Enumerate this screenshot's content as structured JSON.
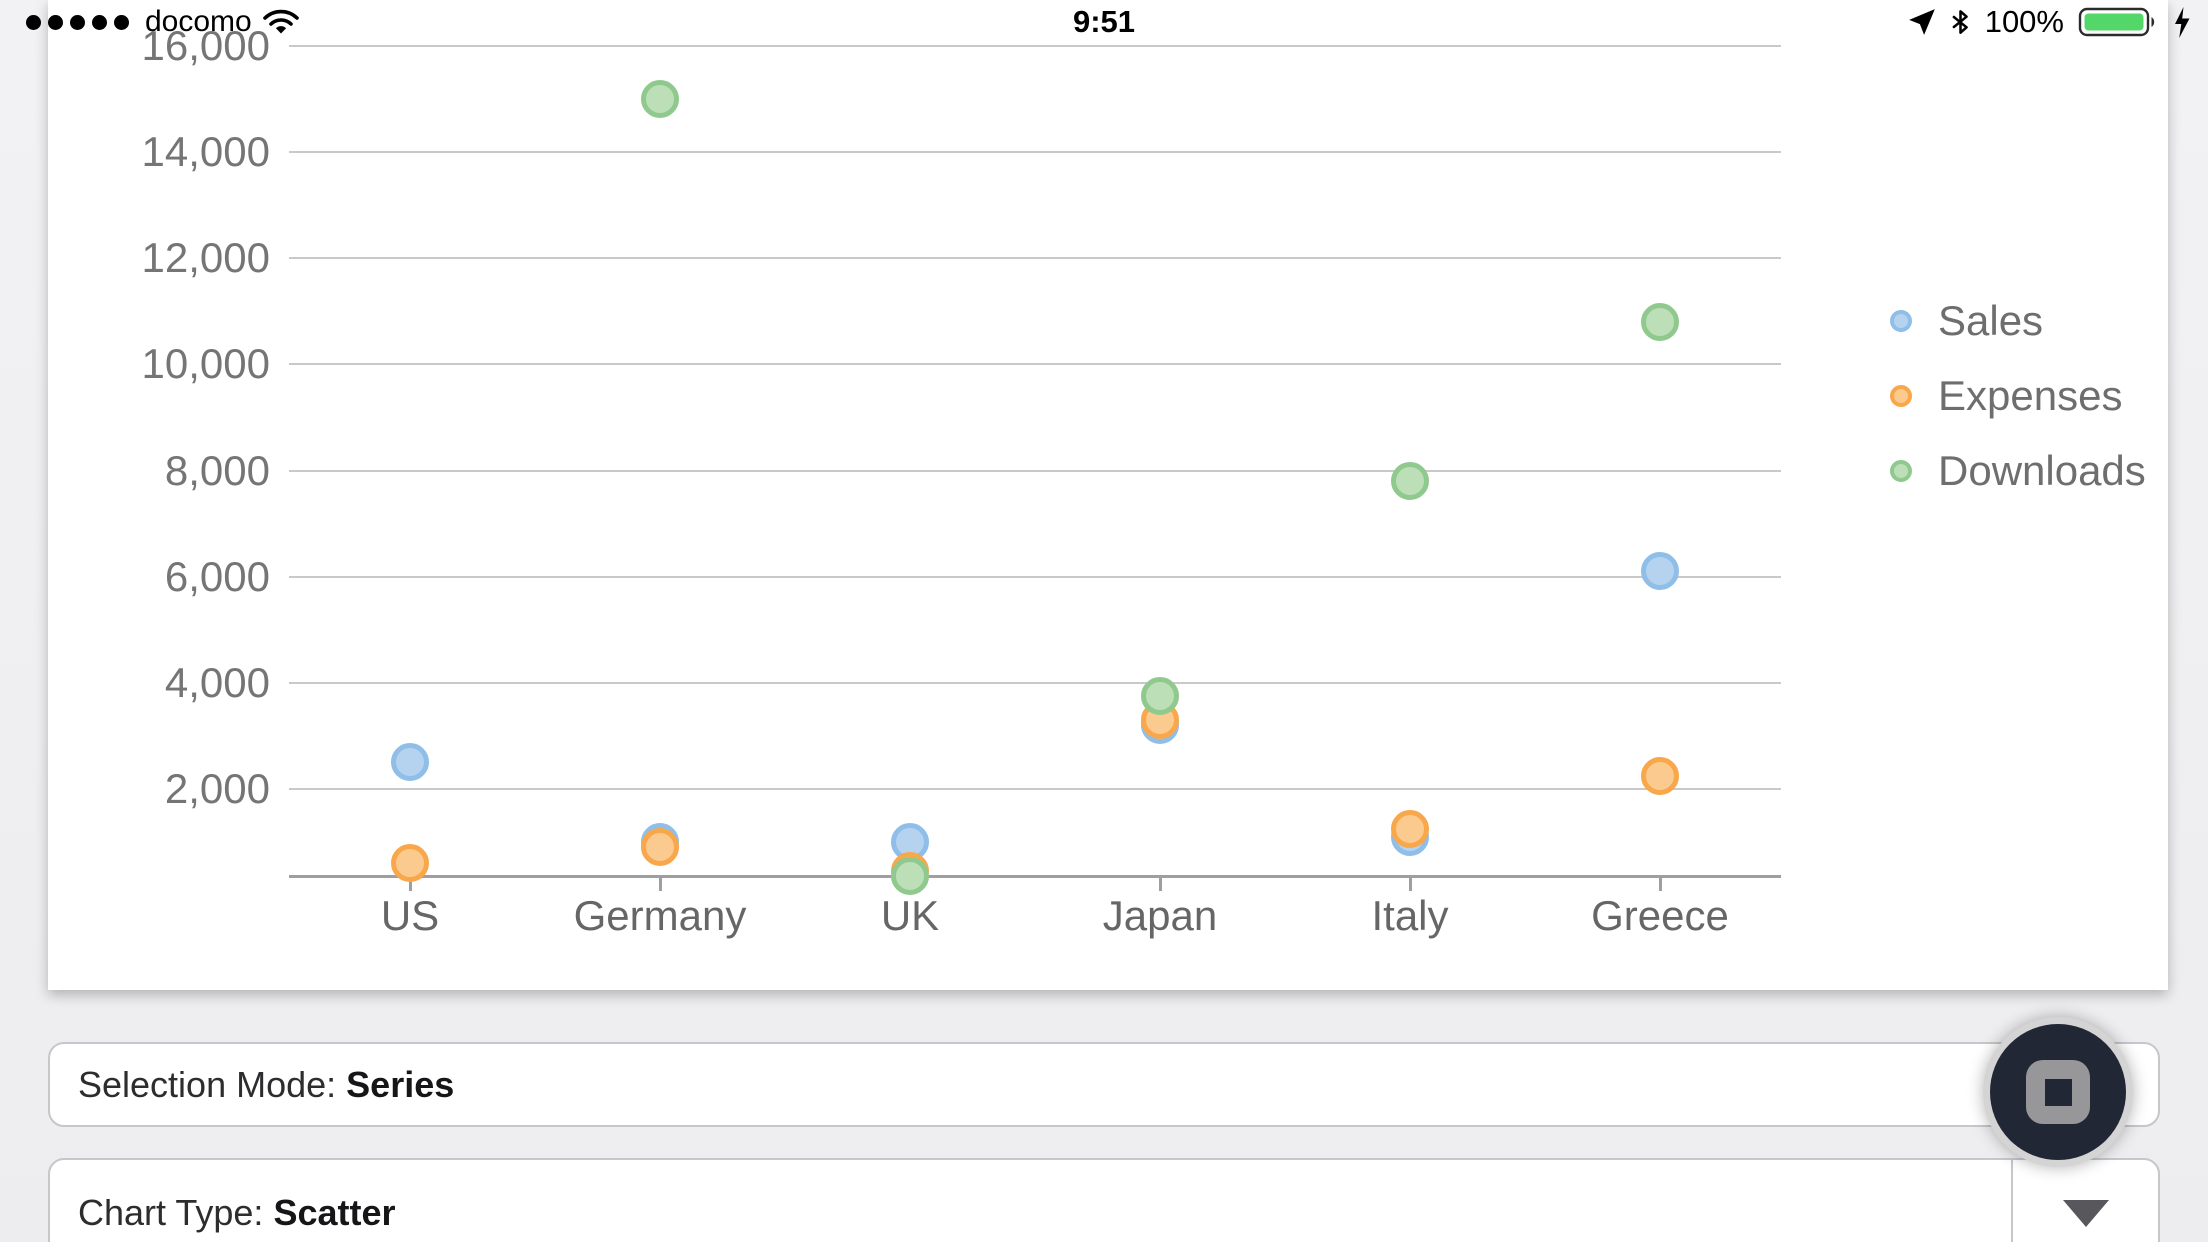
{
  "status_bar": {
    "carrier": "docomo",
    "signal_dots": 5,
    "time": "9:51",
    "battery_percent": "100%",
    "battery_color": "#53d769",
    "icons": [
      "signal-strength-icon",
      "wifi-icon",
      "location-arrow-icon",
      "bluetooth-icon",
      "battery-icon",
      "charging-bolt-icon"
    ]
  },
  "chart_data": {
    "type": "scatter",
    "title": "",
    "xlabel": "",
    "ylabel": "",
    "categories": [
      "US",
      "Germany",
      "UK",
      "Japan",
      "Italy",
      "Greece"
    ],
    "series": [
      {
        "name": "Sales",
        "ring_color": "#8FBEE8",
        "fill_color": "#B5D3EF",
        "values": [
          2500,
          1000,
          1000,
          3200,
          1100,
          6100
        ]
      },
      {
        "name": "Expenses",
        "ring_color": "#F8A74B",
        "fill_color": "#FBCA8E",
        "values": [
          600,
          900,
          450,
          3300,
          1250,
          2250
        ]
      },
      {
        "name": "Downloads",
        "ring_color": "#90C98E",
        "fill_color": "#BCDFB7",
        "values": [
          null,
          15000,
          360,
          3750,
          7800,
          10800
        ]
      }
    ],
    "y_ticks": [
      {
        "value": 16000,
        "label": "16,000"
      },
      {
        "value": 14000,
        "label": "14,000"
      },
      {
        "value": 12000,
        "label": "12,000"
      },
      {
        "value": 10000,
        "label": "10,000"
      },
      {
        "value": 8000,
        "label": "8,000"
      },
      {
        "value": 6000,
        "label": "6,000"
      },
      {
        "value": 4000,
        "label": "4,000"
      },
      {
        "value": 2000,
        "label": "2,000"
      }
    ],
    "ylim": [
      360,
      16600
    ],
    "grid": "horizontal",
    "legend_position": "right"
  },
  "controls": {
    "selection_mode_label": "Selection Mode: ",
    "selection_mode_value": "Series",
    "chart_type_label": "Chart Type: ",
    "chart_type_value": "Scatter"
  }
}
